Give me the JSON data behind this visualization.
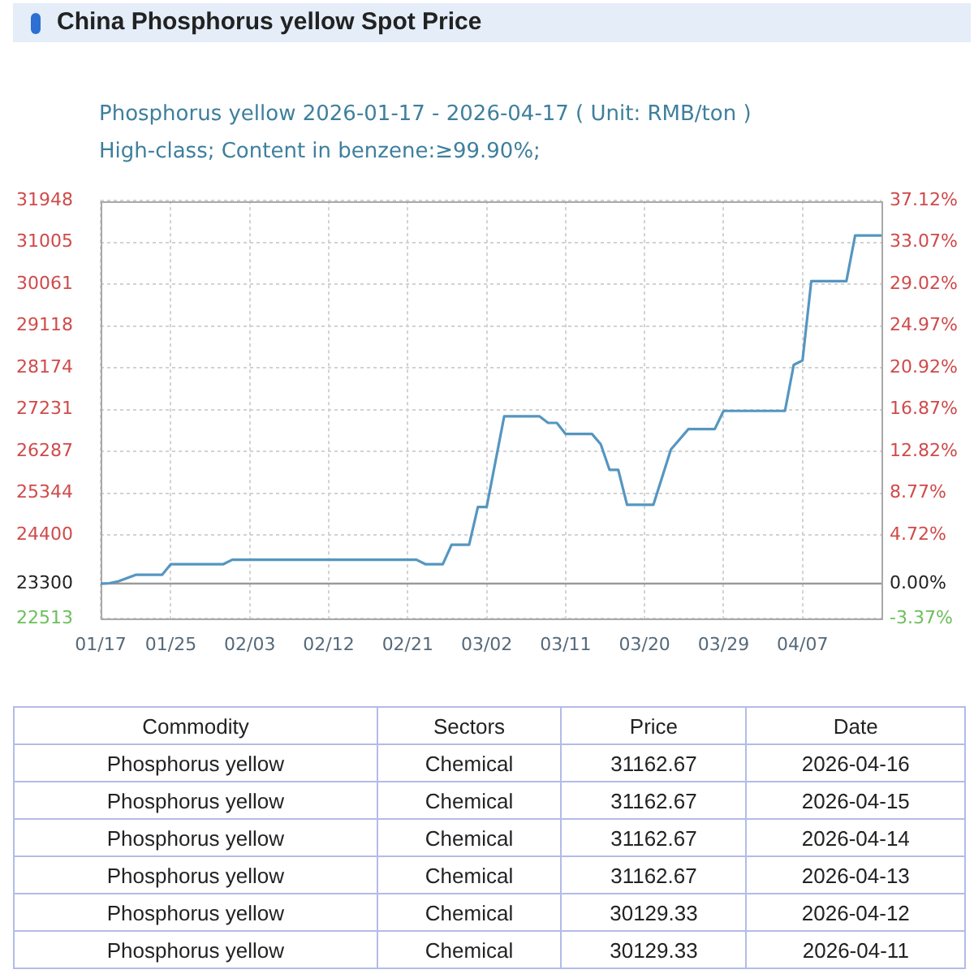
{
  "chart_data": [
    {
      "type": "line",
      "title": "China Phosphorus yellow Spot Price",
      "subtitle": "Phosphorus yellow 2026-01-17 - 2026-04-17 ( Unit: RMB/ton )",
      "annotations": [
        "High-class; Content in benzene:≥99.90%;"
      ],
      "x": [
        "2026-01-17",
        "2026-01-18",
        "2026-01-19",
        "2026-01-21",
        "2026-01-24",
        "2026-01-25",
        "2026-01-31",
        "2026-02-01",
        "2026-02-22",
        "2026-02-23",
        "2026-02-25",
        "2026-02-26",
        "2026-02-28",
        "2026-03-01",
        "2026-03-02",
        "2026-03-04",
        "2026-03-08",
        "2026-03-09",
        "2026-03-10",
        "2026-03-11",
        "2026-03-14",
        "2026-03-15",
        "2026-03-16",
        "2026-03-17",
        "2026-03-18",
        "2026-03-21",
        "2026-03-23",
        "2026-03-25",
        "2026-03-28",
        "2026-03-29",
        "2026-04-05",
        "2026-04-06",
        "2026-04-07",
        "2026-04-08",
        "2026-04-11",
        "2026-04-12",
        "2026-04-13",
        "2026-04-14",
        "2026-04-15",
        "2026-04-16"
      ],
      "values": [
        23300,
        23310,
        23350,
        23500,
        23500,
        23740,
        23740,
        23840,
        23840,
        23740,
        23740,
        24180,
        24180,
        25030,
        25030,
        27080,
        27080,
        26930,
        26930,
        26680,
        26680,
        26450,
        25870,
        25870,
        25080,
        25080,
        26330,
        26790,
        26790,
        27200,
        27200,
        28240,
        28340,
        30130,
        30129.33,
        30129.33,
        31162.67,
        31162.67,
        31162.67,
        31162.67
      ],
      "color": "#5596c0",
      "xlim": [
        "2026-01-17",
        "2026-04-16"
      ],
      "xticks": [
        {
          "value": "2026-01-17",
          "label": "01/17"
        },
        {
          "value": "2026-01-25",
          "label": "01/25"
        },
        {
          "value": "2026-02-03",
          "label": "02/03"
        },
        {
          "value": "2026-02-12",
          "label": "02/12"
        },
        {
          "value": "2026-02-21",
          "label": "02/21"
        },
        {
          "value": "2026-03-02",
          "label": "03/02"
        },
        {
          "value": "2026-03-11",
          "label": "03/11"
        },
        {
          "value": "2026-03-20",
          "label": "03/20"
        },
        {
          "value": "2026-03-29",
          "label": "03/29"
        },
        {
          "value": "2026-04-07",
          "label": "04/07"
        }
      ],
      "ylim": [
        22513,
        31948
      ],
      "yticks": [
        22513,
        23300,
        24400,
        25344,
        26287,
        27231,
        28174,
        29118,
        30061,
        31005,
        31948
      ],
      "y2lim": [
        -3.37,
        37.12
      ],
      "y2ticks": [
        {
          "value": -3.37,
          "label": "-3.37%"
        },
        {
          "value": 0,
          "label": "0.00%"
        },
        {
          "value": 4.72,
          "label": "4.72%"
        },
        {
          "value": 8.77,
          "label": "8.77%"
        },
        {
          "value": 12.82,
          "label": "12.82%"
        },
        {
          "value": 16.87,
          "label": "16.87%"
        },
        {
          "value": 20.92,
          "label": "20.92%"
        },
        {
          "value": 24.97,
          "label": "24.97%"
        },
        {
          "value": 29.02,
          "label": "29.02%"
        },
        {
          "value": 33.07,
          "label": "33.07%"
        },
        {
          "value": 37.12,
          "label": "37.12%"
        }
      ],
      "ref_lines": [
        {
          "axis": "y",
          "value": 23300,
          "color": "#9a9a9a"
        }
      ],
      "grid": true,
      "legend": false
    },
    {
      "type": "other",
      "categories": [
        "Commodity",
        "Sectors",
        "Price",
        "Date"
      ],
      "cell_labels": [
        [
          "Phosphorus yellow",
          "Chemical",
          "31162.67",
          "2026-04-16"
        ],
        [
          "Phosphorus yellow",
          "Chemical",
          "31162.67",
          "2026-04-15"
        ],
        [
          "Phosphorus yellow",
          "Chemical",
          "31162.67",
          "2026-04-14"
        ],
        [
          "Phosphorus yellow",
          "Chemical",
          "31162.67",
          "2026-04-13"
        ],
        [
          "Phosphorus yellow",
          "Chemical",
          "30129.33",
          "2026-04-12"
        ],
        [
          "Phosphorus yellow",
          "Chemical",
          "30129.33",
          "2026-04-11"
        ]
      ]
    }
  ]
}
